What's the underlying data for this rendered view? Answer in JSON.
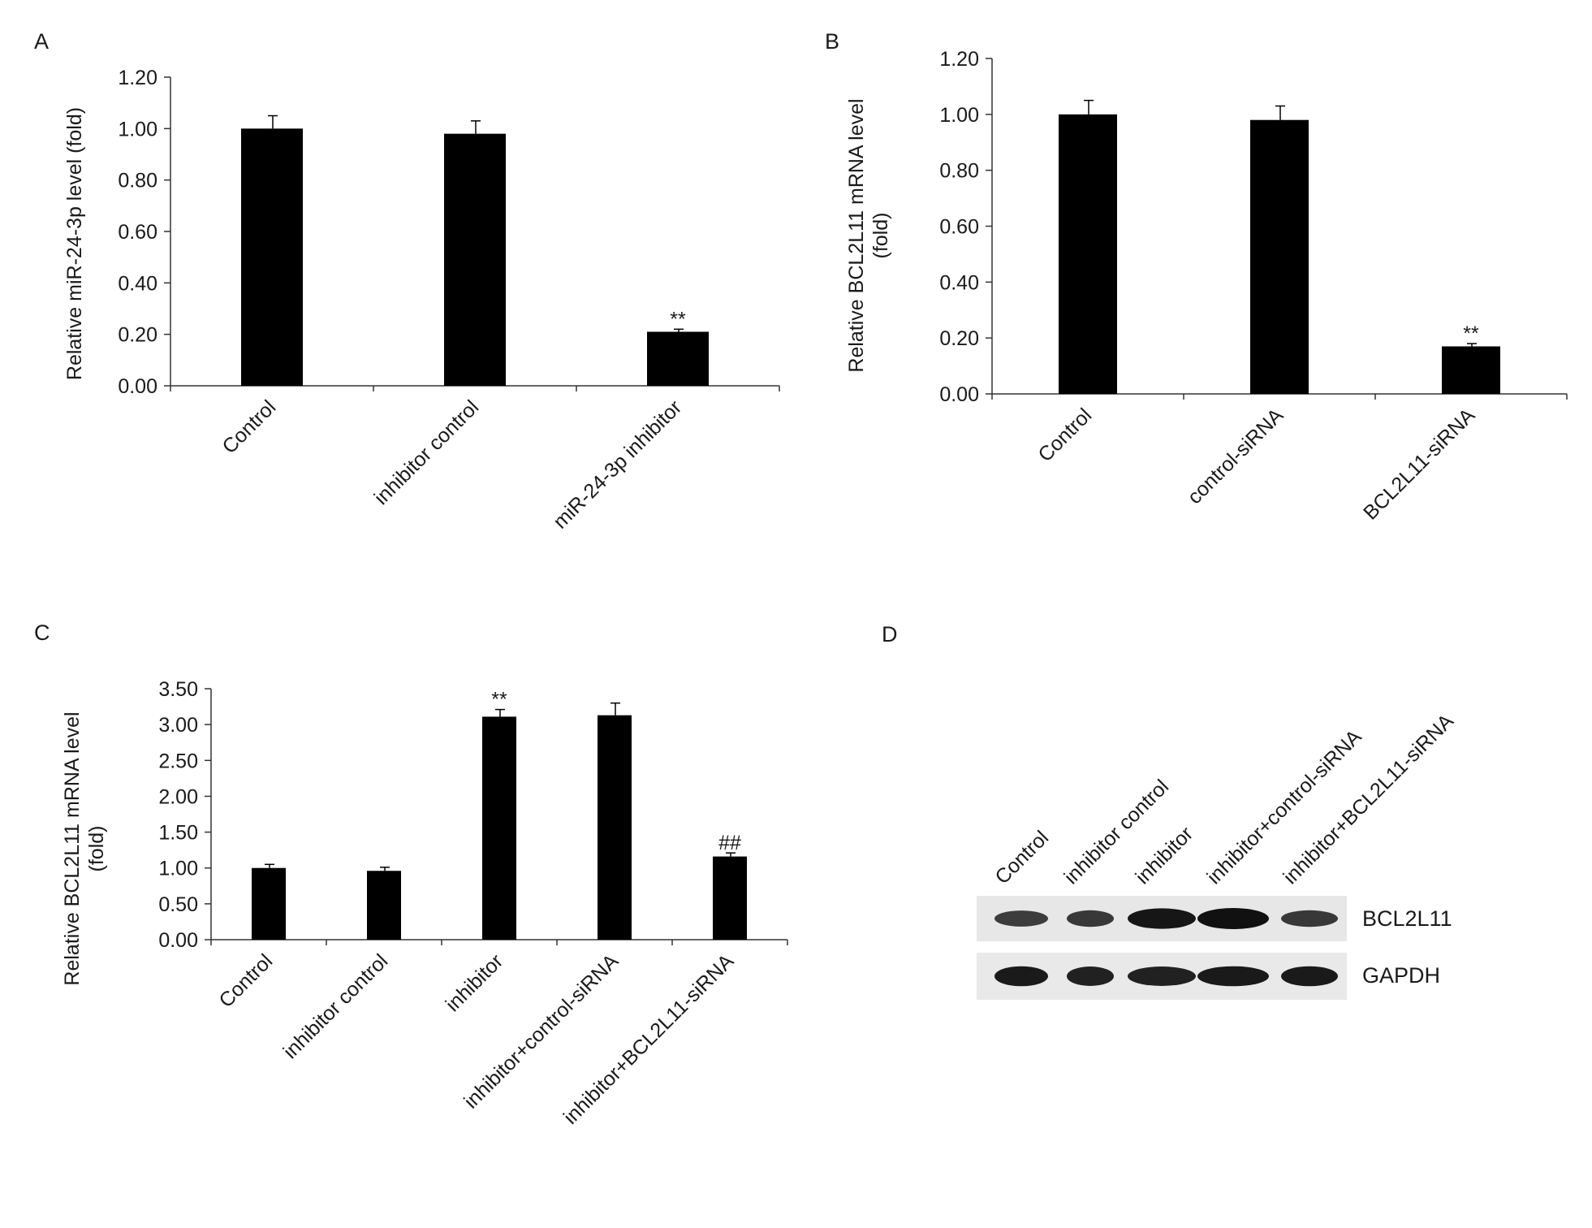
{
  "panels": {
    "A": {
      "letter": "A"
    },
    "B": {
      "letter": "B"
    },
    "C": {
      "letter": "C"
    },
    "D": {
      "letter": "D"
    }
  },
  "chart_data": [
    {
      "panel": "A",
      "type": "bar",
      "categories": [
        "Control",
        "inhibitor control",
        "miR-24-3p inhibitor"
      ],
      "values": [
        1.0,
        0.98,
        0.21
      ],
      "errors": [
        0.05,
        0.05,
        0.01
      ],
      "annotations": [
        "",
        "",
        "**"
      ],
      "ylabel": "Relative miR-24-3p level (fold)",
      "ylabel_lines": [
        "Relative miR-24-3p level (fold)"
      ],
      "ylim": [
        0,
        1.2
      ],
      "yticks": [
        "0.00",
        "0.20",
        "0.40",
        "0.60",
        "0.80",
        "1.00",
        "1.20"
      ],
      "grid": false,
      "bar_color": "#000000"
    },
    {
      "panel": "B",
      "type": "bar",
      "categories": [
        "Control",
        "control-siRNA",
        "BCL2L11-siRNA"
      ],
      "values": [
        1.0,
        0.98,
        0.17
      ],
      "errors": [
        0.05,
        0.05,
        0.01
      ],
      "annotations": [
        "",
        "",
        "**"
      ],
      "ylabel": "Relative BCL2L11 mRNA level (fold)",
      "ylabel_lines": [
        "Relative BCL2L11 mRNA level",
        "(fold)"
      ],
      "ylim": [
        0,
        1.2
      ],
      "yticks": [
        "0.00",
        "0.20",
        "0.40",
        "0.60",
        "0.80",
        "1.00",
        "1.20"
      ],
      "grid": false,
      "bar_color": "#000000"
    },
    {
      "panel": "C",
      "type": "bar",
      "categories": [
        "Control",
        "inhibitor control",
        "inhibitor",
        "inhibitor+control-siRNA",
        "inhibitor+BCL2L11-siRNA"
      ],
      "values": [
        1.0,
        0.96,
        3.11,
        3.13,
        1.16
      ],
      "errors": [
        0.05,
        0.05,
        0.1,
        0.17,
        0.05
      ],
      "annotations": [
        "",
        "",
        "**",
        "",
        "##"
      ],
      "ylabel": "Relative BCL2L11 mRNA level (fold)",
      "ylabel_lines": [
        "Relative BCL2L11 mRNA level",
        "(fold)"
      ],
      "ylim": [
        0,
        3.5
      ],
      "yticks": [
        "0.00",
        "0.50",
        "1.00",
        "1.50",
        "2.00",
        "2.50",
        "3.00",
        "3.50"
      ],
      "grid": false,
      "bar_color": "#000000"
    }
  ],
  "blot": {
    "lanes": [
      "Control",
      "inhibitor control",
      "inhibitor",
      "inhibitor+control-siRNA",
      "inhibitor+BCL2L11-siRNA"
    ],
    "rows": [
      {
        "label": "BCL2L11",
        "intensities": [
          0.55,
          0.6,
          0.95,
          1.0,
          0.6
        ]
      },
      {
        "label": "GAPDH",
        "intensities": [
          0.9,
          0.85,
          0.85,
          0.9,
          0.9
        ]
      }
    ]
  }
}
